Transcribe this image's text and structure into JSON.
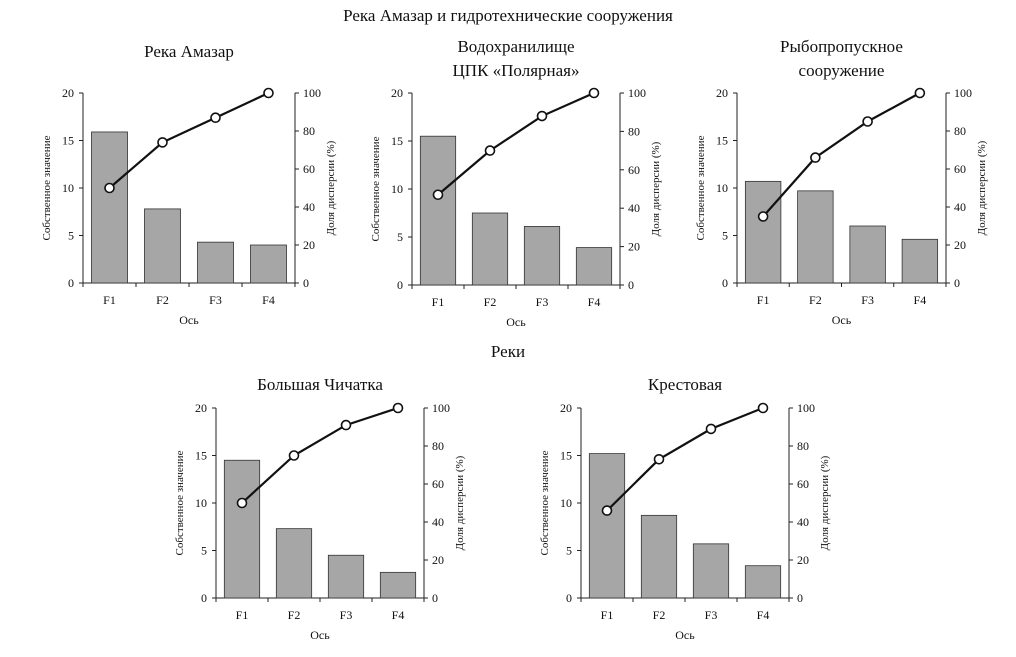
{
  "sections": [
    {
      "title": "Река Амазар и гидротехнические сооружения"
    },
    {
      "title": "Реки"
    }
  ],
  "chart_data": [
    {
      "type": "bar",
      "title": "Река Амазар",
      "categories": [
        "F1",
        "F2",
        "F3",
        "F4"
      ],
      "xlabel": "Ось",
      "ylabel": "Собственное значение",
      "y2label": "Доля дисперсии (%)",
      "ylim": [
        0,
        20
      ],
      "yticks": [
        0,
        5,
        10,
        15,
        20
      ],
      "y2lim": [
        0,
        100
      ],
      "y2ticks": [
        0,
        20,
        40,
        60,
        80,
        100
      ],
      "series": [
        {
          "type": "bar",
          "axis": "left",
          "values": [
            15.9,
            7.8,
            4.3,
            4.0
          ]
        },
        {
          "type": "line",
          "axis": "right",
          "values": [
            50,
            74,
            87,
            100
          ]
        }
      ],
      "bar_color": "#a6a6a6"
    },
    {
      "type": "bar",
      "title": "Водохранилище ЦПК «Полярная»",
      "categories": [
        "F1",
        "F2",
        "F3",
        "F4"
      ],
      "xlabel": "Ось",
      "ylabel": "Собственное значение",
      "y2label": "Доля дисперсии (%)",
      "ylim": [
        0,
        20
      ],
      "yticks": [
        0,
        5,
        10,
        15,
        20
      ],
      "y2lim": [
        0,
        100
      ],
      "y2ticks": [
        0,
        20,
        40,
        60,
        80,
        100
      ],
      "series": [
        {
          "type": "bar",
          "axis": "left",
          "values": [
            15.5,
            7.5,
            6.1,
            3.9
          ]
        },
        {
          "type": "line",
          "axis": "right",
          "values": [
            47,
            70,
            88,
            100
          ]
        }
      ],
      "bar_color": "#a6a6a6"
    },
    {
      "type": "bar",
      "title": "Рыбопропускное сооружение",
      "categories": [
        "F1",
        "F2",
        "F3",
        "F4"
      ],
      "xlabel": "Ось",
      "ylabel": "Собственное значение",
      "y2label": "Доля дисперсии (%)",
      "ylim": [
        0,
        20
      ],
      "yticks": [
        0,
        5,
        10,
        15,
        20
      ],
      "y2lim": [
        0,
        100
      ],
      "y2ticks": [
        0,
        20,
        40,
        60,
        80,
        100
      ],
      "series": [
        {
          "type": "bar",
          "axis": "left",
          "values": [
            10.7,
            9.7,
            6.0,
            4.6
          ]
        },
        {
          "type": "line",
          "axis": "right",
          "values": [
            35,
            66,
            85,
            100
          ]
        }
      ],
      "bar_color": "#a6a6a6"
    },
    {
      "type": "bar",
      "title": "Большая Чичатка",
      "categories": [
        "F1",
        "F2",
        "F3",
        "F4"
      ],
      "xlabel": "Ось",
      "ylabel": "Собственное значение",
      "y2label": "Доля дисперсии (%)",
      "ylim": [
        0,
        20
      ],
      "yticks": [
        0,
        5,
        10,
        15,
        20
      ],
      "y2lim": [
        0,
        100
      ],
      "y2ticks": [
        0,
        20,
        40,
        60,
        80,
        100
      ],
      "series": [
        {
          "type": "bar",
          "axis": "left",
          "values": [
            14.5,
            7.3,
            4.5,
            2.7
          ]
        },
        {
          "type": "line",
          "axis": "right",
          "values": [
            50,
            75,
            91,
            100
          ]
        }
      ],
      "bar_color": "#a6a6a6"
    },
    {
      "type": "bar",
      "title": "Крестовая",
      "categories": [
        "F1",
        "F2",
        "F3",
        "F4"
      ],
      "xlabel": "Ось",
      "ylabel": "Собственное значение",
      "y2label": "Доля дисперсии (%)",
      "ylim": [
        0,
        20
      ],
      "yticks": [
        0,
        5,
        10,
        15,
        20
      ],
      "y2lim": [
        0,
        100
      ],
      "y2ticks": [
        0,
        20,
        40,
        60,
        80,
        100
      ],
      "series": [
        {
          "type": "bar",
          "axis": "left",
          "values": [
            15.2,
            8.7,
            5.7,
            3.4
          ]
        },
        {
          "type": "line",
          "axis": "right",
          "values": [
            46,
            73,
            89,
            100
          ]
        }
      ],
      "bar_color": "#a6a6a6"
    }
  ]
}
